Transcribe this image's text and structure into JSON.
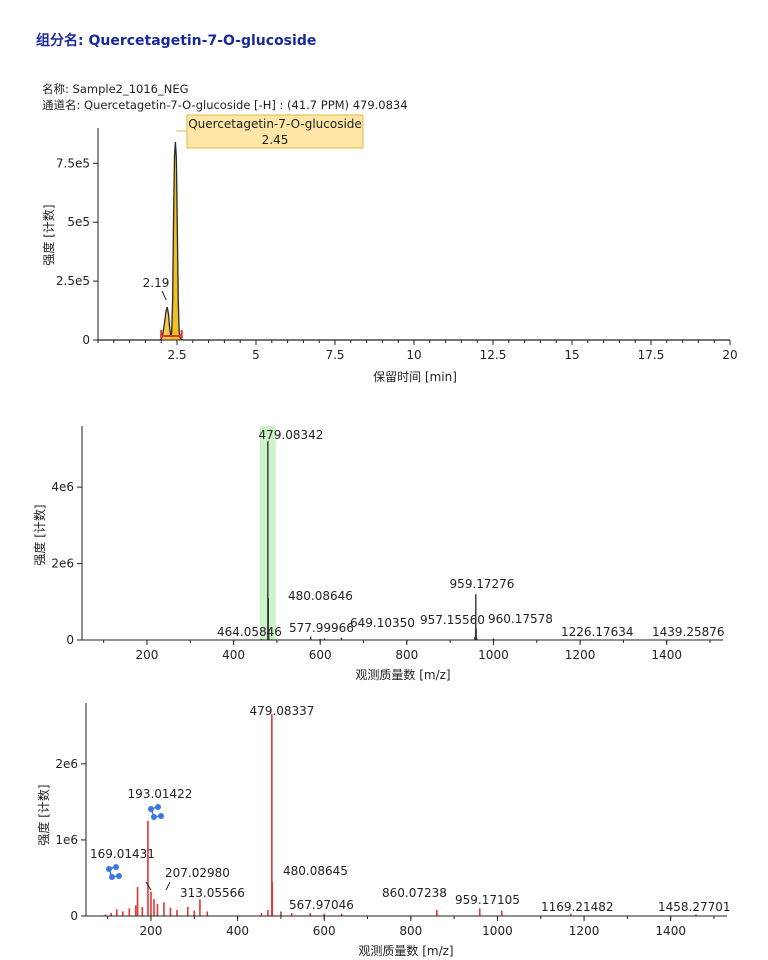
{
  "header": {
    "compound_title": "组分名: Quercetagetin-7-O-glucoside",
    "sample_name": "名称: Sample2_1016_NEG",
    "channel_name": "通道名: Quercetagetin-7-O-glucoside [-H] : (41.7 PPM) 479.0834"
  },
  "chart_data": [
    {
      "type": "line",
      "panel": "chromatogram",
      "xlabel": "保留时间 [min]",
      "ylabel": "强度 [计数]",
      "xlim": [
        0,
        20
      ],
      "ylim": [
        0,
        900000
      ],
      "xticks": [
        2.5,
        5,
        7.5,
        10,
        12.5,
        15,
        17.5,
        20
      ],
      "xtick_labels": [
        "2.5",
        "5",
        "7.5",
        "10",
        "12.5",
        "15",
        "17.5",
        "20"
      ],
      "yticks": [
        0,
        250000,
        500000,
        750000
      ],
      "ytick_labels": [
        "0",
        "2.5e5",
        "5e5",
        "7.5e5"
      ],
      "series": [
        {
          "x": [
            0.0,
            1.95,
            2.0,
            2.05,
            2.1,
            2.15,
            2.19,
            2.23,
            2.27,
            2.3,
            2.33,
            2.36,
            2.39,
            2.42,
            2.45,
            2.48,
            2.51,
            2.54,
            2.57,
            2.6,
            2.65,
            2.7,
            3.0,
            20.0
          ],
          "values": [
            0,
            0,
            4000,
            25000,
            70000,
            120000,
            140000,
            110000,
            50000,
            18000,
            30000,
            160000,
            500000,
            780000,
            840000,
            770000,
            480000,
            160000,
            35000,
            8000,
            2000,
            0,
            0,
            0
          ]
        }
      ],
      "peak_labels": [
        {
          "x": 2.19,
          "text": "2.19"
        },
        {
          "x": 2.45,
          "name": "Quercetagetin-7-O-glucoside",
          "text": "2.45"
        }
      ],
      "colors": {
        "trace": "#2a2a2a",
        "peak_fill": "#f0b400",
        "baseline": "#e23434",
        "label_box": "#fde6a6",
        "label_border": "#e6b640"
      }
    },
    {
      "type": "bar",
      "panel": "ms1",
      "xlabel": "观测质量数 [m/z]",
      "ylabel": "强度 [计数]",
      "xlim": [
        50,
        1530
      ],
      "ylim": [
        0,
        5600000
      ],
      "xticks": [
        200,
        400,
        600,
        800,
        1000,
        1200,
        1400
      ],
      "xtick_labels": [
        "200",
        "400",
        "600",
        "800",
        "1000",
        "1200",
        "1400"
      ],
      "yticks": [
        0,
        2000000,
        4000000
      ],
      "ytick_labels": [
        "0",
        "2e6",
        "4e6"
      ],
      "highlight_mz": 479.08342,
      "series": [
        {
          "x": [
            464.05846,
            479.08342,
            480.08646,
            481.09,
            577.99966,
            600.0,
            610.0,
            649.1035,
            957.1556,
            959.17276,
            960.17578,
            961.18,
            1000.0,
            1226.17634,
            1439.25876
          ],
          "values": [
            25000,
            5200000,
            1100000,
            250000,
            90000,
            30000,
            40000,
            60000,
            90000,
            1200000,
            300000,
            60000,
            40000,
            15000,
            10000
          ]
        }
      ],
      "peak_labels": [
        "479.08342",
        "480.08646",
        "464.05846",
        "577.99966",
        "649.10350",
        "957.15560",
        "959.17276",
        "960.17578",
        "1226.17634",
        "1439.25876"
      ],
      "colors": {
        "bar": "#333333",
        "highlight": "#b8f0b0"
      }
    },
    {
      "type": "bar",
      "panel": "ms2",
      "xlabel": "观测质量数 [m/z]",
      "ylabel": "强度 [计数]",
      "xlim": [
        50,
        1530
      ],
      "ylim": [
        0,
        2800000
      ],
      "xticks": [
        200,
        400,
        600,
        800,
        1000,
        1200,
        1400
      ],
      "xtick_labels": [
        "200",
        "400",
        "600",
        "800",
        "1000",
        "1200",
        "1400"
      ],
      "yticks": [
        0,
        1000000,
        2000000
      ],
      "ytick_labels": [
        "0",
        "1e6",
        "2e6"
      ],
      "series": [
        {
          "x": [
            95,
            108,
            121,
            135,
            150,
            165,
            169.01431,
            180,
            193.01422,
            200,
            207.0298,
            215,
            230,
            245,
            260,
            285,
            300,
            313.05566,
            330,
            455,
            470,
            479.08337,
            480.08645,
            500,
            525,
            567.97046,
            600,
            640,
            860.07238,
            959.17105,
            1010,
            1169.21482,
            1458.27701
          ],
          "values": [
            20000,
            40000,
            90000,
            60000,
            100000,
            140000,
            380000,
            120000,
            1250000,
            320000,
            220000,
            160000,
            180000,
            110000,
            80000,
            120000,
            70000,
            220000,
            60000,
            40000,
            80000,
            2650000,
            450000,
            60000,
            40000,
            40000,
            30000,
            30000,
            80000,
            100000,
            70000,
            30000,
            20000
          ]
        }
      ],
      "peak_labels": [
        "479.08337",
        "193.01422",
        "169.01431",
        "207.02980",
        "313.05566",
        "480.08645",
        "567.97046",
        "860.07238",
        "959.17105",
        "1169.21482",
        "1458.27701"
      ],
      "colors": {
        "bar": "#e23434",
        "annotation": "#3a78e0"
      }
    }
  ]
}
